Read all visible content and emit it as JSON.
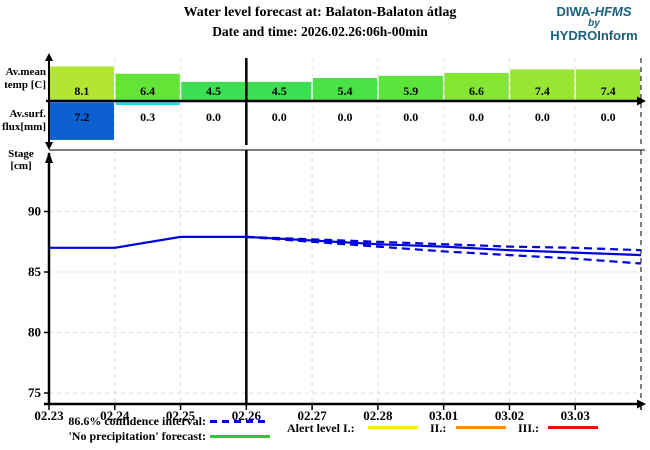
{
  "header": {
    "title": "Water level forecast at: Balaton-Balaton átlag",
    "subtitle": "Date and time: 2026.02.26:06h-00min"
  },
  "logo": {
    "brand_a": "DIWA-",
    "brand_b": "HFMS",
    "by": "by",
    "company": "HYDROInform",
    "color": "#19607f"
  },
  "axis_labels": {
    "temp_line1": "Av.mean",
    "temp_line2": "temp [C]",
    "flux_line1": "Av.surf.",
    "flux_line2": "flux[mm]",
    "stage_line1": "Stage",
    "stage_line2": "[cm]"
  },
  "chart_data": [
    {
      "type": "bar",
      "name": "average-mean-temperature",
      "title": "Av.mean temp [C]",
      "categories": [
        "02.23",
        "02.24",
        "02.25",
        "02.26",
        "02.27",
        "02.28",
        "03.01",
        "03.02",
        "03.03"
      ],
      "values": [
        8.1,
        6.4,
        4.5,
        4.5,
        5.4,
        5.9,
        6.6,
        7.4,
        7.4
      ],
      "bar_colors": [
        "#b2e632",
        "#64e436",
        "#3cdf52",
        "#3cdf52",
        "#48e246",
        "#5ce43c",
        "#84e632",
        "#98e632",
        "#98e632"
      ]
    },
    {
      "type": "bar",
      "name": "average-surface-flux",
      "title": "Av.surf. flux[mm]",
      "categories": [
        "02.23",
        "02.24",
        "02.25",
        "02.26",
        "02.27",
        "02.28",
        "03.01",
        "03.02",
        "03.03"
      ],
      "values": [
        7.2,
        0.3,
        0.0,
        0.0,
        0.0,
        0.0,
        0.0,
        0.0,
        0.0
      ],
      "bar_colors": [
        "#0d60d0",
        "#1fd8e8",
        "#0d60d0",
        "#0d60d0",
        "#0d60d0",
        "#0d60d0",
        "#0d60d0",
        "#0d60d0",
        "#0d60d0"
      ]
    },
    {
      "type": "line",
      "name": "stage-forecast",
      "title": "Water level forecast at: Balaton-Balaton átlag",
      "ylabel": "Stage [cm]",
      "ylim": [
        74,
        95
      ],
      "yticks": [
        90,
        85,
        80,
        75
      ],
      "xticks": [
        "02.23",
        "02.24",
        "02.25",
        "02.26",
        "02.27",
        "02.28",
        "03.01",
        "03.02",
        "03.03"
      ],
      "now_marker": "02.26",
      "grid": true,
      "series": [
        {
          "name": "observed-stage",
          "color": "#0000dd",
          "dashed": false,
          "x": [
            0,
            1,
            2,
            3
          ],
          "values": [
            87.0,
            87.0,
            87.9,
            87.9
          ]
        },
        {
          "name": "no-precipitation-forecast",
          "color": "#0000dd",
          "dashed": false,
          "x": [
            3,
            4,
            5,
            6,
            7,
            8,
            9
          ],
          "values": [
            87.9,
            87.6,
            87.3,
            87.1,
            86.8,
            86.6,
            86.4
          ]
        },
        {
          "name": "confidence-upper",
          "color": "#0000dd",
          "dashed": true,
          "x": [
            3,
            4,
            5,
            6,
            7,
            8,
            9
          ],
          "values": [
            87.9,
            87.7,
            87.5,
            87.3,
            87.1,
            87.0,
            86.8
          ]
        },
        {
          "name": "confidence-lower",
          "color": "#0000dd",
          "dashed": true,
          "x": [
            3,
            4,
            5,
            6,
            7,
            8,
            9
          ],
          "values": [
            87.9,
            87.5,
            87.1,
            86.7,
            86.4,
            86.1,
            85.7
          ]
        }
      ]
    }
  ],
  "legend": {
    "confidence_label": "86.6% confidence interval:",
    "confidence_color": "#0000dd",
    "no_precip_label": "'No precipitation' forecast:",
    "no_precip_color": "#2ecc1e",
    "alert_label": "Alert level  I.:",
    "alert1_color": "#ffee00",
    "alert2_label": "II.:",
    "alert2_color": "#ff9000",
    "alert3_label": "III.:",
    "alert3_color": "#ee1100"
  }
}
